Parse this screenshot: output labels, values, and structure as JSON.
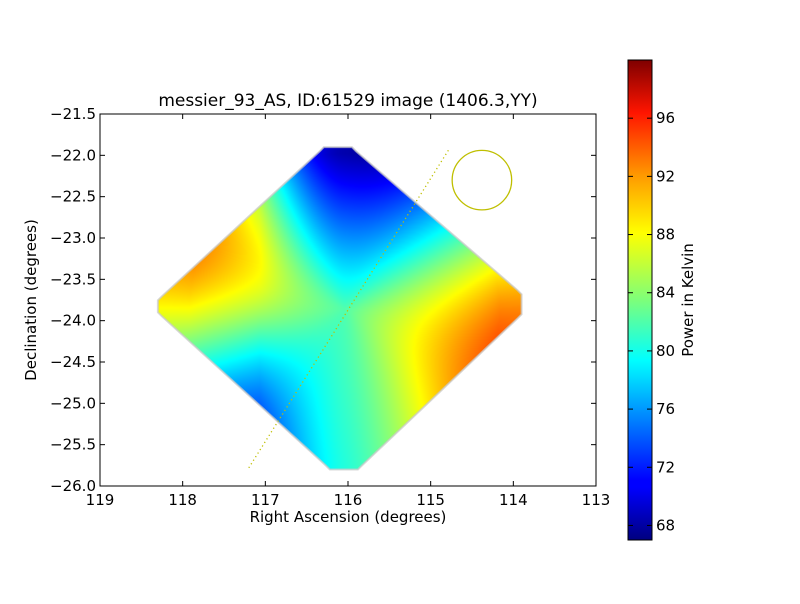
{
  "chart_data": {
    "type": "heatmap",
    "title": "messier_93_AS, ID:61529 image (1406.3,YY)",
    "xlabel": "Right Ascension (degrees)",
    "ylabel": "Declination (degrees)",
    "xlim": [
      119,
      113
    ],
    "ylim": [
      -26.0,
      -21.5
    ],
    "x_ticks": [
      "119",
      "118",
      "117",
      "116",
      "115",
      "114",
      "113"
    ],
    "y_ticks": [
      "−21.5",
      "−22.0",
      "−22.5",
      "−23.0",
      "−23.5",
      "−24.0",
      "−24.5",
      "−25.0",
      "−25.5",
      "−26.0"
    ],
    "x_tick_values": [
      119,
      118,
      117,
      116,
      115,
      114,
      113
    ],
    "y_tick_values": [
      -21.5,
      -22.0,
      -22.5,
      -23.0,
      -23.5,
      -24.0,
      -24.5,
      -25.0,
      -25.5,
      -26.0
    ],
    "image_center": {
      "ra": 116.05,
      "dec": -23.85
    },
    "image_extent": {
      "ra": [
        118.3,
        113.9
      ],
      "dec": [
        -25.8,
        -21.9
      ]
    },
    "colorbar": {
      "label": "Power in Kelvin",
      "range": [
        67,
        100
      ],
      "ticks": [
        "68",
        "72",
        "76",
        "80",
        "84",
        "88",
        "92",
        "96"
      ],
      "tick_values": [
        68,
        72,
        76,
        80,
        84,
        88,
        92,
        96
      ],
      "colormap": "jet"
    },
    "annotations": {
      "beam_circle": {
        "ra": 114.38,
        "dec": -22.3,
        "radius_deg_dec": 0.36,
        "color": "#bfbf00"
      },
      "dotted_line": {
        "from": {
          "ra": 117.2,
          "dec": -25.78
        },
        "to": {
          "ra": 114.78,
          "dec": -21.93
        },
        "color": "#bfbf00"
      }
    }
  }
}
